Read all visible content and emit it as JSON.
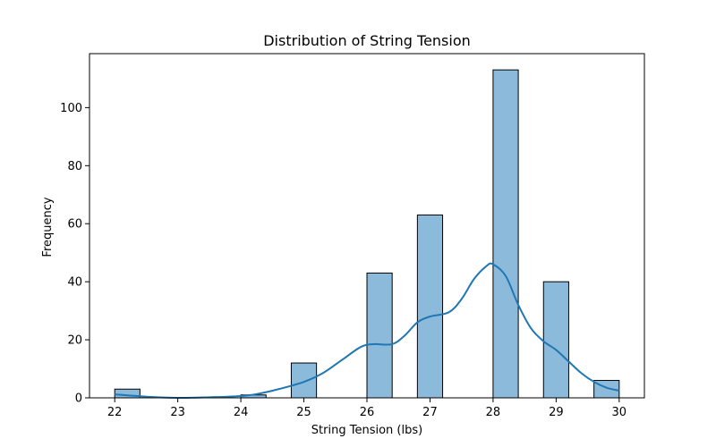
{
  "chart_data": {
    "type": "bar",
    "title": "Distribution of String Tension",
    "xlabel": "String Tension (lbs)",
    "ylabel": "Frequency",
    "xlim": [
      21.6,
      30.4
    ],
    "ylim": [
      0,
      118.6
    ],
    "xticks": [
      "22",
      "23",
      "24",
      "25",
      "26",
      "27",
      "28",
      "29",
      "30"
    ],
    "yticks": [
      "0",
      "20",
      "40",
      "60",
      "80",
      "100"
    ],
    "grid": false,
    "bin_width": 0.4,
    "bins": [
      {
        "start": 22.0,
        "end": 22.4,
        "count": 3
      },
      {
        "start": 22.4,
        "end": 22.8,
        "count": 0
      },
      {
        "start": 22.8,
        "end": 23.2,
        "count": 0
      },
      {
        "start": 23.2,
        "end": 23.6,
        "count": 0
      },
      {
        "start": 23.6,
        "end": 24.0,
        "count": 0
      },
      {
        "start": 24.0,
        "end": 24.4,
        "count": 1
      },
      {
        "start": 24.4,
        "end": 24.8,
        "count": 0
      },
      {
        "start": 24.8,
        "end": 25.2,
        "count": 12
      },
      {
        "start": 25.2,
        "end": 25.6,
        "count": 0
      },
      {
        "start": 25.6,
        "end": 26.0,
        "count": 0
      },
      {
        "start": 26.0,
        "end": 26.4,
        "count": 43
      },
      {
        "start": 26.4,
        "end": 26.8,
        "count": 0
      },
      {
        "start": 26.8,
        "end": 27.2,
        "count": 63
      },
      {
        "start": 27.2,
        "end": 27.6,
        "count": 0
      },
      {
        "start": 27.6,
        "end": 28.0,
        "count": 0
      },
      {
        "start": 28.0,
        "end": 28.4,
        "count": 113
      },
      {
        "start": 28.4,
        "end": 28.8,
        "count": 0
      },
      {
        "start": 28.8,
        "end": 29.2,
        "count": 40
      },
      {
        "start": 29.2,
        "end": 29.6,
        "count": 0
      },
      {
        "start": 29.6,
        "end": 30.0,
        "count": 6
      }
    ],
    "kde": {
      "x": [
        22.0,
        22.5,
        23.0,
        23.5,
        24.0,
        24.3,
        24.6,
        25.0,
        25.3,
        25.6,
        25.9,
        26.1,
        26.4,
        26.6,
        26.8,
        27.0,
        27.3,
        27.5,
        27.7,
        27.9,
        28.0,
        28.2,
        28.4,
        28.6,
        28.8,
        29.0,
        29.2,
        29.4,
        29.6,
        29.8,
        30.0
      ],
      "y": [
        1.2,
        0.4,
        0.0,
        0.2,
        0.6,
        1.5,
        3.0,
        5.5,
        8.5,
        13.0,
        17.5,
        18.5,
        18.5,
        21.5,
        26.0,
        28.0,
        29.5,
        34.0,
        41.0,
        45.5,
        46.0,
        42.0,
        32.0,
        24.0,
        19.5,
        16.5,
        12.5,
        8.5,
        5.5,
        3.5,
        2.5
      ]
    },
    "colors": {
      "bar_fill": "#8cbadb",
      "bar_edge": "#000000",
      "kde_line": "#1f77b4",
      "axes": "#000000"
    }
  }
}
